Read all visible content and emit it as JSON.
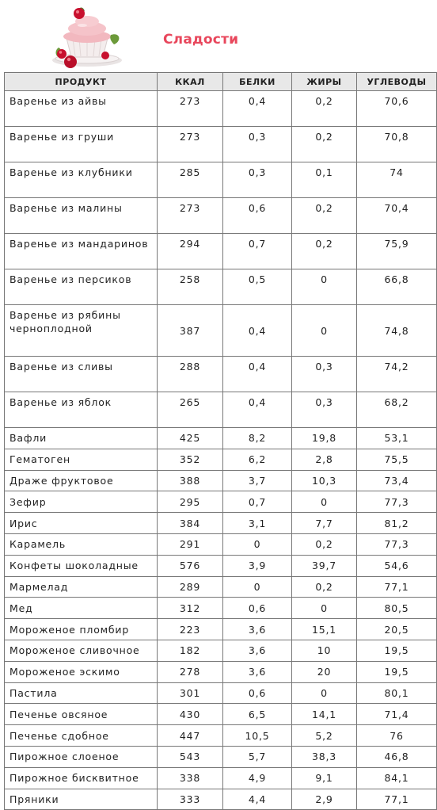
{
  "page": {
    "title": "Сладости",
    "accent_color": "#e8475c"
  },
  "table": {
    "headers": [
      "ПРОДУКТ",
      "ККАЛ",
      "БЕЛКИ",
      "ЖИРЫ",
      "УГЛЕВОДЫ"
    ],
    "rows": [
      [
        "Варенье из айвы",
        "273",
        "0,4",
        "0,2",
        "70,6"
      ],
      [
        "Варенье из груши",
        "273",
        "0,3",
        "0,2",
        "70,8"
      ],
      [
        "Варенье из клубники",
        "285",
        "0,3",
        "0,1",
        "74"
      ],
      [
        "Варенье из малины",
        "273",
        "0,6",
        "0,2",
        "70,4"
      ],
      [
        "Варенье из мандаринов",
        "294",
        "0,7",
        "0,2",
        "75,9"
      ],
      [
        "Варенье из персиков",
        "258",
        "0,5",
        "0",
        "66,8"
      ],
      [
        "Варенье из рябины черноплодной",
        "387",
        "0,4",
        "0",
        "74,8"
      ],
      [
        "Варенье из сливы",
        "288",
        "0,4",
        "0,3",
        "74,2"
      ],
      [
        "Варенье из яблок",
        "265",
        "0,4",
        "0,3",
        "68,2"
      ],
      [
        "Вафли",
        "425",
        "8,2",
        "19,8",
        "53,1"
      ],
      [
        "Гематоген",
        "352",
        "6,2",
        "2,8",
        "75,5"
      ],
      [
        "Драже фруктовое",
        "388",
        "3,7",
        "10,3",
        "73,4"
      ],
      [
        "Зефир",
        "295",
        "0,7",
        "0",
        "77,3"
      ],
      [
        "Ирис",
        "384",
        "3,1",
        "7,7",
        "81,2"
      ],
      [
        "Карамель",
        "291",
        "0",
        "0,2",
        "77,3"
      ],
      [
        "Конфеты шоколадные",
        "576",
        "3,9",
        "39,7",
        "54,6"
      ],
      [
        "Мармелад",
        "289",
        "0",
        "0,2",
        "77,1"
      ],
      [
        "Мед",
        "312",
        "0,6",
        "0",
        "80,5"
      ],
      [
        "Мороженое пломбир",
        "223",
        "3,6",
        "15,1",
        "20,5"
      ],
      [
        "Мороженое сливочное",
        "182",
        "3,6",
        "10",
        "19,5"
      ],
      [
        "Мороженое эскимо",
        "278",
        "3,6",
        "20",
        "19,5"
      ],
      [
        "Пастила",
        "301",
        "0,6",
        "0",
        "80,1"
      ],
      [
        "Печенье овсяное",
        "430",
        "6,5",
        "14,1",
        "71,4"
      ],
      [
        "Печенье сдобное",
        "447",
        "10,5",
        "5,2",
        "76"
      ],
      [
        "Пирожное слоеное",
        "543",
        "5,7",
        "38,3",
        "46,8"
      ],
      [
        "Пирожное бисквитное",
        "338",
        "4,9",
        "9,1",
        "84,1"
      ],
      [
        "Пряники",
        "333",
        "4,4",
        "2,9",
        "77,1"
      ]
    ]
  }
}
